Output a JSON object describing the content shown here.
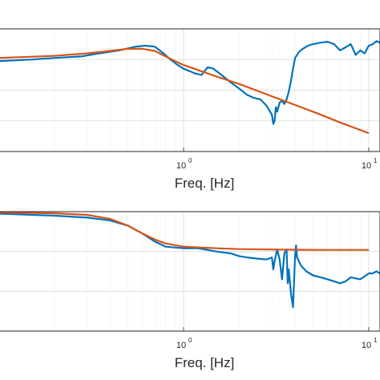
{
  "chart_data": [
    {
      "type": "line",
      "xscale": "log",
      "xlim": [
        0.1,
        11.5
      ],
      "ylim": [
        0,
        4
      ],
      "xlabel": "Freq. [Hz]",
      "xtick_labels": [
        {
          "x": 1,
          "base": "10",
          "exp": "0"
        },
        {
          "x": 10,
          "base": "10",
          "exp": "1"
        }
      ],
      "grid": true,
      "series": [
        {
          "color": "#0072BD",
          "x": [
            0.1,
            0.15,
            0.2,
            0.28,
            0.35,
            0.45,
            0.55,
            0.62,
            0.7,
            0.78,
            0.85,
            0.93,
            1.0,
            1.08,
            1.15,
            1.25,
            1.35,
            1.45,
            1.6,
            1.8,
            2.0,
            2.2,
            2.4,
            2.6,
            2.8,
            3.0,
            3.05,
            3.1,
            3.15,
            3.2,
            3.3,
            3.4,
            3.5,
            3.6,
            3.7,
            3.8,
            3.9,
            4.0,
            4.2,
            4.4,
            4.7,
            5.0,
            5.5,
            6.0,
            6.5,
            7.0,
            7.5,
            8.0,
            8.5,
            9.0,
            9.5,
            10.0,
            10.5,
            11.0,
            11.5
          ],
          "y": [
            2.95,
            3.0,
            3.05,
            3.1,
            3.2,
            3.3,
            3.42,
            3.45,
            3.42,
            3.2,
            3.0,
            2.82,
            2.7,
            2.62,
            2.55,
            2.5,
            2.75,
            2.7,
            2.5,
            2.25,
            2.05,
            1.85,
            1.75,
            1.7,
            1.5,
            1.2,
            0.9,
            1.0,
            1.45,
            1.3,
            1.6,
            1.65,
            1.55,
            1.7,
            1.95,
            2.3,
            2.7,
            3.05,
            3.25,
            3.35,
            3.45,
            3.5,
            3.55,
            3.58,
            3.5,
            3.3,
            3.4,
            3.5,
            3.15,
            3.3,
            3.2,
            3.45,
            3.5,
            3.6,
            3.55
          ]
        },
        {
          "color": "#D95319",
          "x": [
            0.1,
            0.2,
            0.3,
            0.4,
            0.5,
            0.6,
            0.7,
            0.8,
            0.9,
            1.0,
            1.5,
            2.0,
            3.0,
            5.0,
            7.0,
            10.0
          ],
          "y": [
            3.05,
            3.12,
            3.2,
            3.28,
            3.35,
            3.35,
            3.28,
            3.1,
            2.95,
            2.82,
            2.45,
            2.2,
            1.8,
            1.3,
            0.95,
            0.6
          ]
        }
      ]
    },
    {
      "type": "line",
      "xscale": "log",
      "xlim": [
        0.1,
        11.5
      ],
      "ylim": [
        0,
        3
      ],
      "xlabel": "Freq. [Hz]",
      "xtick_labels": [
        {
          "x": 1,
          "base": "10",
          "exp": "0"
        },
        {
          "x": 10,
          "base": "10",
          "exp": "1"
        }
      ],
      "grid": true,
      "series": [
        {
          "color": "#0072BD",
          "x": [
            0.1,
            0.2,
            0.3,
            0.4,
            0.5,
            0.6,
            0.7,
            0.8,
            1.0,
            1.2,
            1.5,
            1.8,
            2.0,
            2.2,
            2.5,
            2.8,
            3.0,
            3.05,
            3.1,
            3.2,
            3.3,
            3.4,
            3.5,
            3.6,
            3.65,
            3.7,
            3.8,
            3.9,
            4.0,
            4.05,
            4.1,
            4.3,
            4.6,
            5.0,
            5.5,
            6.0,
            6.5,
            7.0,
            7.5,
            8.0,
            9.0,
            10.0,
            10.5,
            11.0,
            11.5
          ],
          "y": [
            2.95,
            2.9,
            2.85,
            2.78,
            2.65,
            2.45,
            2.25,
            2.12,
            2.08,
            2.08,
            2.0,
            1.95,
            1.88,
            1.85,
            1.82,
            1.8,
            1.85,
            1.55,
            1.75,
            2.05,
            1.8,
            1.3,
            1.95,
            2.05,
            1.2,
            1.55,
            0.95,
            0.6,
            1.9,
            2.15,
            1.85,
            1.65,
            1.5,
            1.4,
            1.35,
            1.3,
            1.25,
            1.2,
            1.25,
            1.35,
            1.3,
            1.45,
            1.45,
            1.5,
            1.45
          ]
        },
        {
          "color": "#D95319",
          "x": [
            0.1,
            0.2,
            0.3,
            0.4,
            0.5,
            0.6,
            0.7,
            0.8,
            1.0,
            1.5,
            2.0,
            3.0,
            5.0,
            10.0
          ],
          "y": [
            2.98,
            2.96,
            2.92,
            2.82,
            2.65,
            2.45,
            2.3,
            2.2,
            2.12,
            2.08,
            2.06,
            2.05,
            2.04,
            2.04
          ]
        }
      ]
    }
  ]
}
